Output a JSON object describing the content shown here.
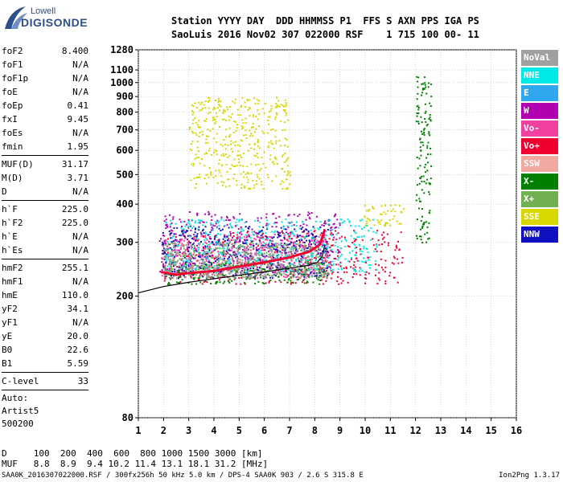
{
  "logo": {
    "line1": "Lowell",
    "line2": "DIGISONDE"
  },
  "header": {
    "row1": "Station YYYY DAY  DDD HHMMSS P1  FFS S AXN PPS IGA PS",
    "row2": "SaoLuis 2016 Nov02 307 022000 RSF    1 715 100 00- 11"
  },
  "params": {
    "group1": [
      {
        "name": "foF2",
        "value": "8.400"
      },
      {
        "name": "foF1",
        "value": "N/A"
      },
      {
        "name": "foF1p",
        "value": "N/A"
      },
      {
        "name": "foE",
        "value": "N/A"
      },
      {
        "name": "foEp",
        "value": "0.41"
      },
      {
        "name": "fxI",
        "value": "9.45"
      },
      {
        "name": "foEs",
        "value": "N/A"
      },
      {
        "name": "fmin",
        "value": "1.95"
      }
    ],
    "group2": [
      {
        "name": "MUF(D)",
        "value": "31.17"
      },
      {
        "name": "M(D)",
        "value": "3.71"
      },
      {
        "name": "D",
        "value": "N/A"
      }
    ],
    "group3": [
      {
        "name": "h`F",
        "value": "225.0"
      },
      {
        "name": "h`F2",
        "value": "225.0"
      },
      {
        "name": "h`E",
        "value": "N/A"
      },
      {
        "name": "h`Es",
        "value": "N/A"
      }
    ],
    "group4": [
      {
        "name": "hmF2",
        "value": "255.1"
      },
      {
        "name": "hmF1",
        "value": "N/A"
      },
      {
        "name": "hmE",
        "value": "110.0"
      },
      {
        "name": "yF2",
        "value": "34.1"
      },
      {
        "name": "yF1",
        "value": "N/A"
      },
      {
        "name": "yE",
        "value": "20.0"
      },
      {
        "name": "B0",
        "value": "22.6"
      },
      {
        "name": "B1",
        "value": "5.59"
      }
    ],
    "group5": [
      {
        "name": "C-level",
        "value": "33"
      }
    ],
    "notes": [
      "Auto:",
      "Artist5",
      "500200"
    ]
  },
  "legend": [
    {
      "label": "NoVal",
      "color": "#a0a0a0"
    },
    {
      "label": "NNE",
      "color": "#00e8e8"
    },
    {
      "label": "E",
      "color": "#30a8f0"
    },
    {
      "label": "W",
      "color": "#b000b0"
    },
    {
      "label": "Vo-",
      "color": "#f040a0"
    },
    {
      "label": "Vo+",
      "color": "#f00030"
    },
    {
      "label": "SSW",
      "color": "#f0a8a0"
    },
    {
      "label": "X-",
      "color": "#008000"
    },
    {
      "label": "X+",
      "color": "#70b050"
    },
    {
      "label": "SSE",
      "color": "#d8d800"
    },
    {
      "label": "NNW",
      "color": "#1010c0"
    }
  ],
  "chart_data": {
    "type": "scatter",
    "x_ticks": [
      "1",
      "2",
      "3",
      "4",
      "5",
      "6",
      "7",
      "8",
      "9",
      "10",
      "11",
      "12",
      "13",
      "14",
      "15",
      "16"
    ],
    "y_ticks": [
      "80",
      "200",
      "300",
      "400",
      "500",
      "600",
      "700",
      "800",
      "900",
      "1000",
      "1100",
      "1280"
    ],
    "xlim": [
      1,
      16
    ],
    "ylim": [
      80,
      1280
    ],
    "yscale": "log",
    "grid": true,
    "legend_placement": "right",
    "traces": [
      {
        "name": "F-trace",
        "color": "#f00030",
        "x": [
          1.9,
          2.5,
          3.0,
          4.0,
          5.0,
          6.0,
          7.0,
          7.8,
          8.2,
          8.4
        ],
        "y": [
          240,
          235,
          238,
          242,
          250,
          258,
          268,
          280,
          295,
          330
        ]
      },
      {
        "name": "virtual-height-model",
        "color": "#000000",
        "x": [
          1.0,
          2.0,
          3.0,
          4.0,
          5.0,
          6.0,
          7.0,
          7.7,
          8.1,
          8.3,
          8.4
        ],
        "y": [
          205,
          215,
          222,
          228,
          234,
          240,
          247,
          252,
          258,
          270,
          295
        ]
      }
    ],
    "scatter_regions": [
      {
        "color": "#f00030",
        "x": [
          1.9,
          11.5
        ],
        "y": [
          220,
          330
        ]
      },
      {
        "color": "#b000b0",
        "x": [
          1.8,
          9.0
        ],
        "y": [
          240,
          380
        ]
      },
      {
        "color": "#f040a0",
        "x": [
          1.9,
          8.6
        ],
        "y": [
          230,
          320
        ]
      },
      {
        "color": "#d8d800",
        "x": [
          3.0,
          7.0
        ],
        "y": [
          450,
          900
        ]
      },
      {
        "color": "#d8d800",
        "x": [
          9.8,
          11.5
        ],
        "y": [
          340,
          400
        ]
      },
      {
        "color": "#1010c0",
        "x": [
          1.9,
          8.5
        ],
        "y": [
          230,
          340
        ]
      },
      {
        "color": "#008000",
        "x": [
          2.0,
          8.5
        ],
        "y": [
          220,
          260
        ]
      },
      {
        "color": "#008000",
        "x": [
          12.0,
          12.6
        ],
        "y": [
          300,
          1050
        ]
      },
      {
        "color": "#70b050",
        "x": [
          2.0,
          8.5
        ],
        "y": [
          230,
          300
        ]
      },
      {
        "color": "#00e8e8",
        "x": [
          2.0,
          10.5
        ],
        "y": [
          240,
          360
        ]
      },
      {
        "color": "#a0a0a0",
        "x": [
          2.0,
          8.5
        ],
        "y": [
          230,
          300
        ]
      }
    ]
  },
  "bottom_table": {
    "d_label": "D",
    "muf_label": "MUF",
    "d_values": [
      "100",
      "200",
      "400",
      "600",
      "800",
      "1000",
      "1500",
      "3000"
    ],
    "muf_values": [
      "8.8",
      "8.9",
      "9.4",
      "10.2",
      "11.4",
      "13.1",
      "18.1",
      "31.2"
    ],
    "d_unit": "[km]",
    "muf_unit": "[MHz]"
  },
  "footer": {
    "text": "SAA0K_2016307022000.RSF / 300fx256h 50 kHz 5.0 km / DPS-4 SAA0K 903 / 2.6 S 315.8 E",
    "version": "Ion2Png 1.3.17"
  }
}
